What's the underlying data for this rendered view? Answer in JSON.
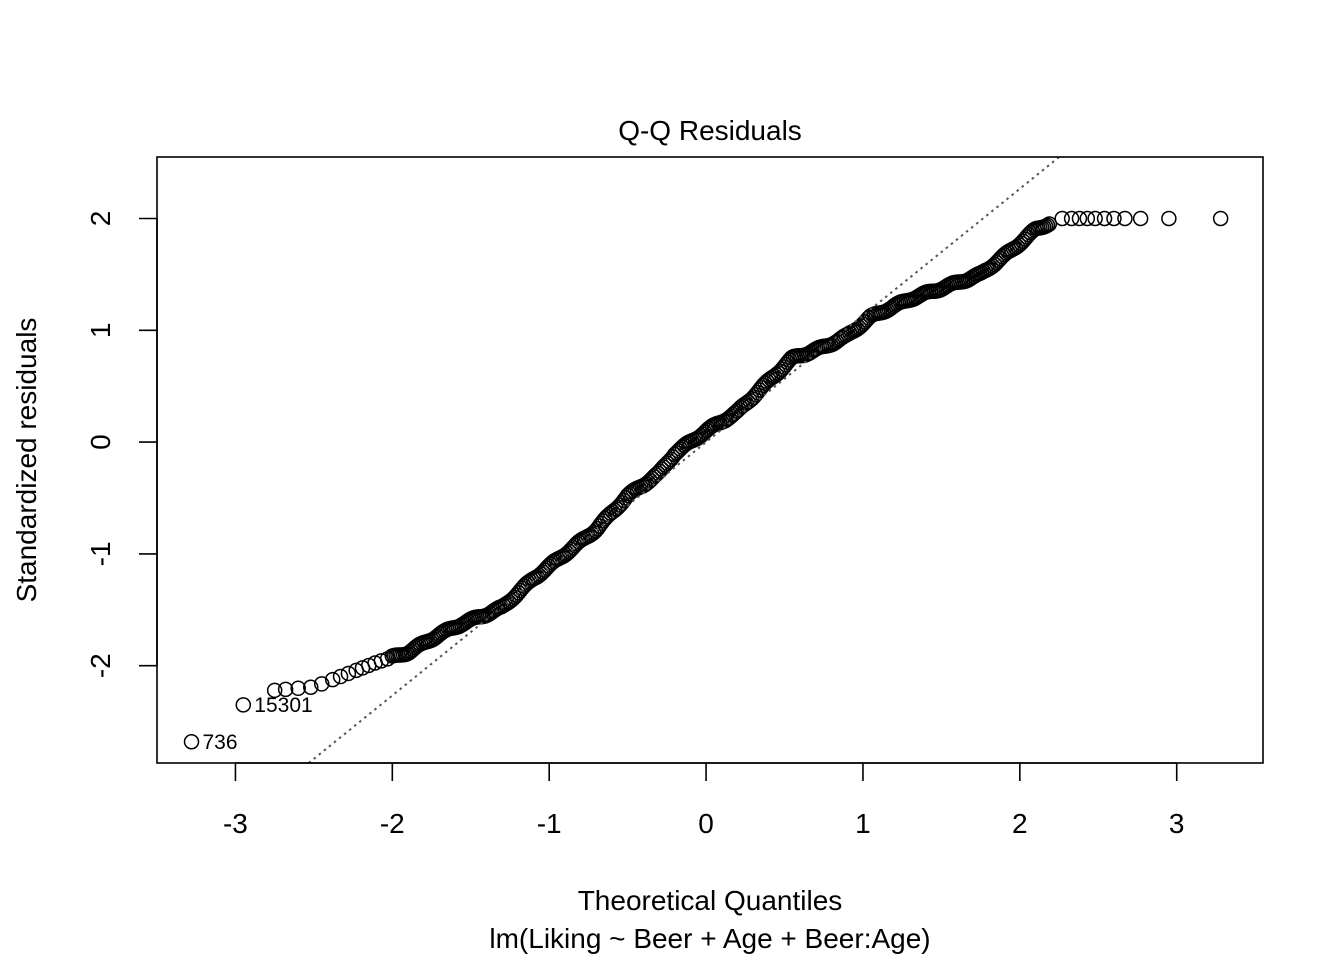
{
  "chart_data": {
    "type": "scatter",
    "title": "Q-Q Residuals",
    "xlabel": "Theoretical Quantiles",
    "subtitle": "lm(Liking ~ Beer + Age + Beer:Age)",
    "ylabel": "Standardized residuals",
    "xlim": [
      -3.5,
      3.55
    ],
    "ylim": [
      -2.87,
      2.55
    ],
    "xticks": [
      "-3",
      "-2",
      "-1",
      "0",
      "1",
      "2",
      "3"
    ],
    "yticks": [
      "-2",
      "-1",
      "0",
      "1",
      "2"
    ],
    "grid": false,
    "legend": "none",
    "marker": "open-circle",
    "reference_line": {
      "style": "dotted",
      "color": "#555555",
      "slope": 1.133,
      "intercept": 0.0
    },
    "curve_knots": [
      [
        -2.75,
        -2.22
      ],
      [
        -2.5,
        -2.19
      ],
      [
        -2.3,
        -2.08
      ],
      [
        -2.1,
        -1.97
      ],
      [
        -1.9,
        -1.88
      ],
      [
        -1.7,
        -1.72
      ],
      [
        -1.55,
        -1.62
      ],
      [
        -1.42,
        -1.55
      ],
      [
        -1.3,
        -1.48
      ],
      [
        -1.1,
        -1.22
      ],
      [
        -0.9,
        -1.0
      ],
      [
        -0.7,
        -0.78
      ],
      [
        -0.5,
        -0.48
      ],
      [
        -0.3,
        -0.28
      ],
      [
        -0.2,
        -0.1
      ],
      [
        0.0,
        0.1
      ],
      [
        0.2,
        0.27
      ],
      [
        0.35,
        0.48
      ],
      [
        0.55,
        0.75
      ],
      [
        0.75,
        0.85
      ],
      [
        0.9,
        0.95
      ],
      [
        1.05,
        1.12
      ],
      [
        1.3,
        1.28
      ],
      [
        1.55,
        1.4
      ],
      [
        1.75,
        1.5
      ],
      [
        1.95,
        1.72
      ],
      [
        2.1,
        1.9
      ],
      [
        2.25,
        2.0
      ]
    ],
    "outliers": [
      {
        "x": -3.28,
        "y": -2.68,
        "label": "736"
      },
      {
        "x": -2.95,
        "y": -2.35,
        "label": "15301"
      }
    ],
    "top_points_x": [
      2.27,
      2.33,
      2.38,
      2.43,
      2.48,
      2.54,
      2.6,
      2.67,
      2.77,
      2.95,
      3.28
    ],
    "top_points_y": 2.0
  }
}
